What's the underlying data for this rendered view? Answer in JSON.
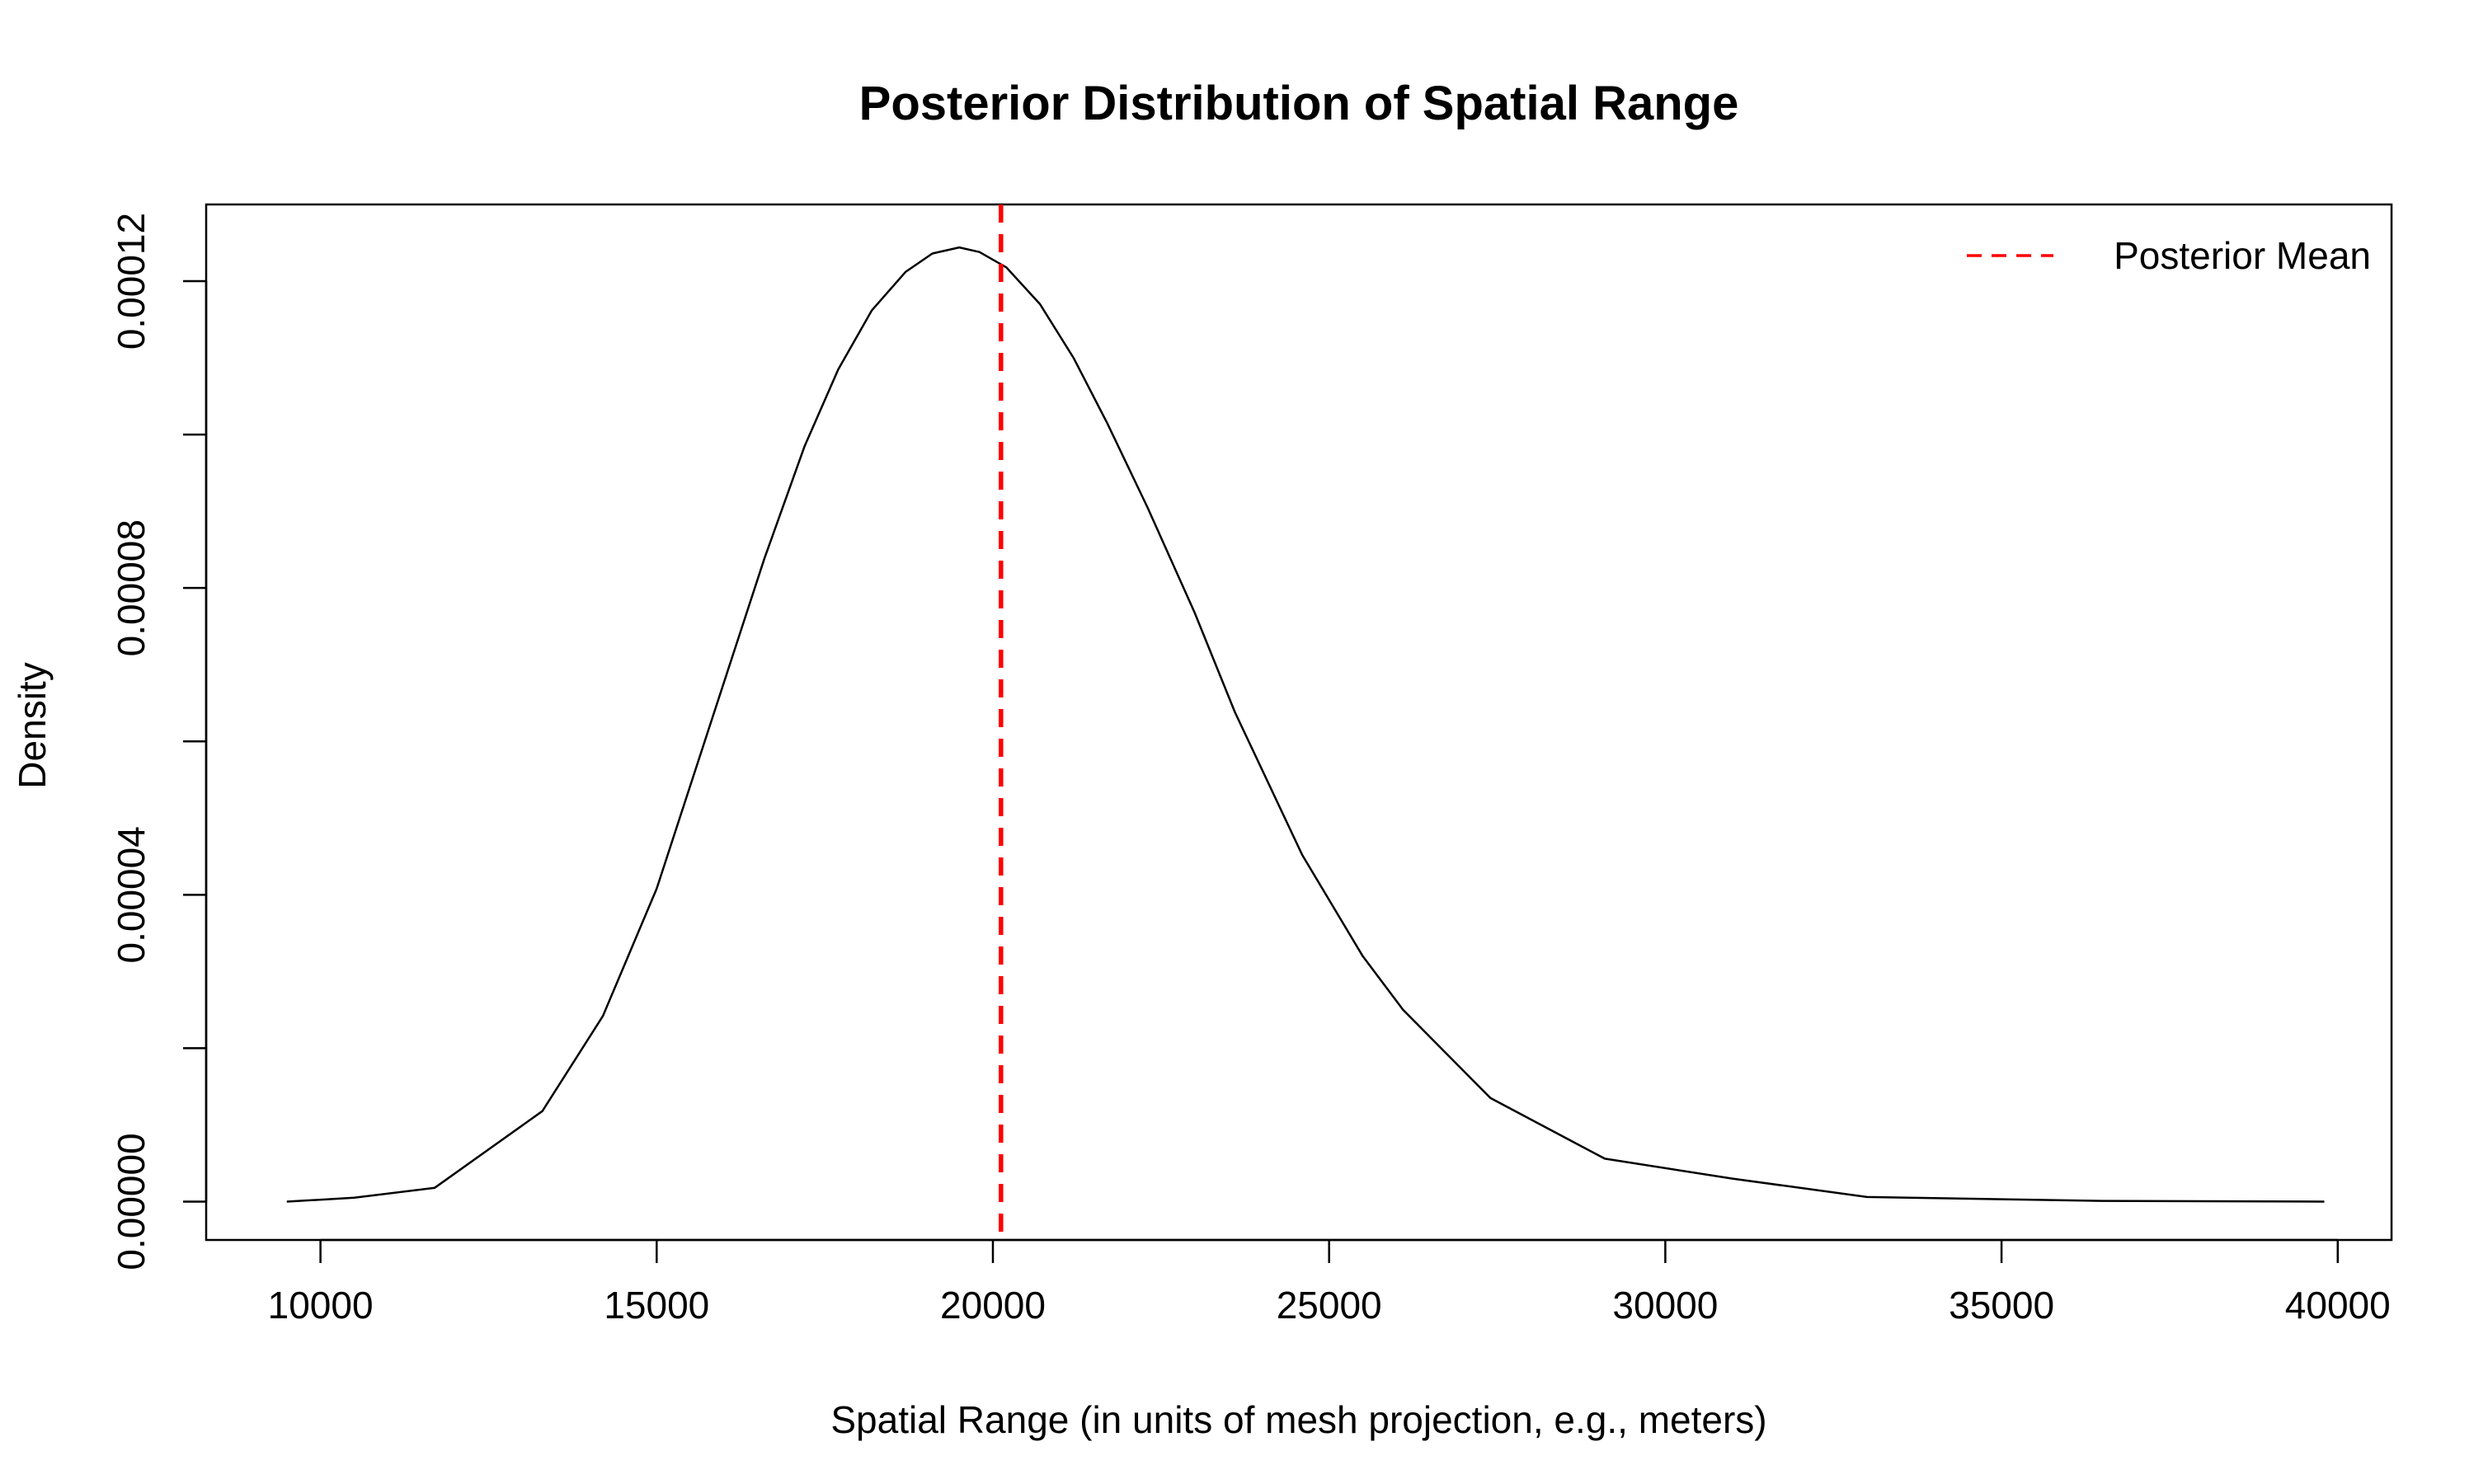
{
  "chart_data": {
    "type": "line",
    "title": "Posterior Distribution of Spatial Range",
    "xlabel": "Spatial Range (in units of mesh projection, e.g., meters)",
    "ylabel": "Density",
    "xlim": [
      8300,
      40800
    ],
    "ylim": [
      -5e-06,
      0.00013
    ],
    "x_ticks": [
      10000,
      15000,
      20000,
      25000,
      30000,
      35000,
      40000
    ],
    "x_tick_labels": [
      "10000",
      "15000",
      "20000",
      "25000",
      "30000",
      "35000",
      "40000"
    ],
    "y_ticks": [
      0,
      2e-05,
      4e-05,
      6e-05,
      8e-05,
      0.0001,
      0.00012
    ],
    "y_tick_labels": [
      "0.00000",
      "",
      "0.00004",
      "",
      "0.00008",
      "",
      "0.00012"
    ],
    "grid": false,
    "legend": {
      "position": "top-right",
      "entries": [
        {
          "label": "Posterior Mean",
          "color": "#ff0000",
          "style": "dashed"
        }
      ]
    },
    "series": [
      {
        "color": "#000000",
        "x": [
          9500,
          10500,
          11700,
          13300,
          14200,
          15000,
          15800,
          16600,
          17200,
          17700,
          18200,
          18700,
          19100,
          19500,
          19800,
          20200,
          20700,
          21200,
          21700,
          22300,
          23000,
          23600,
          24600,
          25500,
          26100,
          27400,
          29100,
          31000,
          33000,
          36500,
          39800
        ],
        "y": [
          0.0,
          5e-07,
          1.8e-06,
          1.18e-05,
          2.42e-05,
          4.08e-05,
          6.23e-05,
          8.38e-05,
          9.85e-05,
          0.0001085,
          0.0001162,
          0.0001212,
          0.0001236,
          0.0001244,
          0.0001238,
          0.0001218,
          0.000117,
          0.00011,
          0.0001015,
          9.05e-05,
          7.68e-05,
          6.38e-05,
          4.52e-05,
          3.2e-05,
          2.5e-05,
          1.35e-05,
          5.6e-06,
          3e-06,
          6e-07,
          1e-07,
          0.0
        ]
      }
    ],
    "reference_lines": [
      {
        "axis": "x",
        "value": 20120,
        "color": "#ff0000",
        "style": "dashed",
        "label": "Posterior Mean"
      }
    ]
  }
}
